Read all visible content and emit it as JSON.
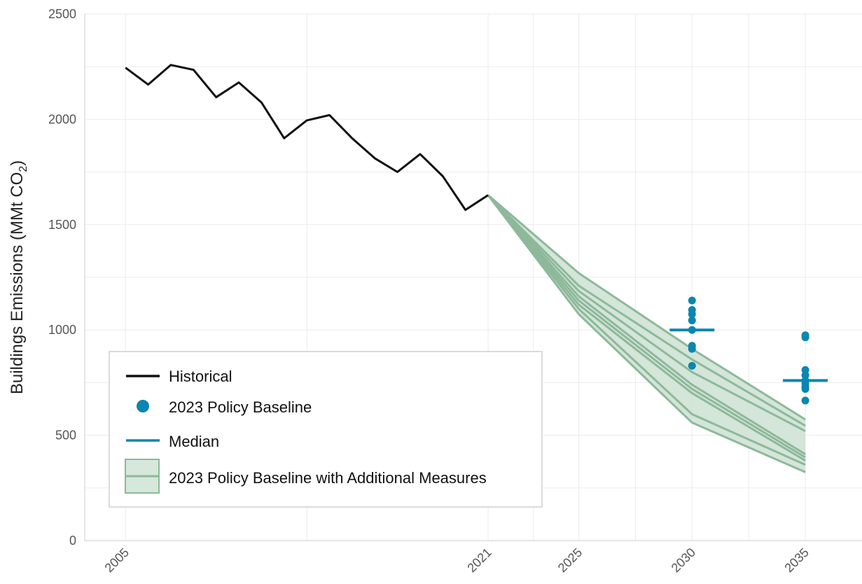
{
  "chart_data": {
    "type": "line",
    "ylabel": "Buildings Emissions (MMt CO",
    "ylabel_sub": "2",
    "ylabel_close": ")",
    "ylim": [
      0,
      2500
    ],
    "xlim": [
      2003.2,
      2037.5
    ],
    "yticks": [
      "0",
      "500",
      "1000",
      "1500",
      "2000",
      "2500"
    ],
    "xticks": [
      "2005",
      "2021",
      "2025",
      "2030",
      "2035"
    ],
    "grid": true,
    "legend_position": "bottom-left",
    "colors": {
      "historical": "#111111",
      "baseline": "#0a86b0",
      "band_fill": "#cfe2d5",
      "band_line": "#8db99a"
    },
    "historical": {
      "name": "Historical",
      "x": [
        2005,
        2006,
        2007,
        2008,
        2009,
        2010,
        2011,
        2012,
        2013,
        2014,
        2015,
        2016,
        2017,
        2018,
        2019,
        2020,
        2021
      ],
      "y": [
        2245,
        2165,
        2258,
        2235,
        2105,
        2175,
        2080,
        1910,
        1995,
        2020,
        1910,
        1815,
        1750,
        1835,
        1730,
        1570,
        1640
      ]
    },
    "policy_baseline": {
      "name": "2023 Policy Baseline",
      "points": [
        {
          "x": 2030,
          "y": 1140
        },
        {
          "x": 2030,
          "y": 1095
        },
        {
          "x": 2030,
          "y": 1075
        },
        {
          "x": 2030,
          "y": 1045
        },
        {
          "x": 2030,
          "y": 1000
        },
        {
          "x": 2030,
          "y": 925
        },
        {
          "x": 2030,
          "y": 910
        },
        {
          "x": 2030,
          "y": 830
        },
        {
          "x": 2035,
          "y": 975
        },
        {
          "x": 2035,
          "y": 965
        },
        {
          "x": 2035,
          "y": 810
        },
        {
          "x": 2035,
          "y": 785
        },
        {
          "x": 2035,
          "y": 760
        },
        {
          "x": 2035,
          "y": 745
        },
        {
          "x": 2035,
          "y": 730
        },
        {
          "x": 2035,
          "y": 720
        },
        {
          "x": 2035,
          "y": 665
        }
      ]
    },
    "median": {
      "name": "Median",
      "values": [
        {
          "x": 2030,
          "y": 1000
        },
        {
          "x": 2035,
          "y": 760
        }
      ]
    },
    "additional_measures": {
      "name": "2023 Policy Baseline with Additional Measures",
      "x": [
        2021,
        2025,
        2030,
        2035
      ],
      "upper": [
        1640,
        1270,
        910,
        575
      ],
      "lower": [
        1640,
        1075,
        560,
        325
      ],
      "lines": [
        [
          1640,
          1270,
          910,
          575
        ],
        [
          1640,
          1210,
          860,
          545
        ],
        [
          1640,
          1185,
          800,
          520
        ],
        [
          1640,
          1160,
          740,
          410
        ],
        [
          1640,
          1140,
          720,
          395
        ],
        [
          1640,
          1120,
          700,
          380
        ],
        [
          1640,
          1100,
          600,
          360
        ],
        [
          1640,
          1075,
          560,
          325
        ]
      ]
    }
  }
}
